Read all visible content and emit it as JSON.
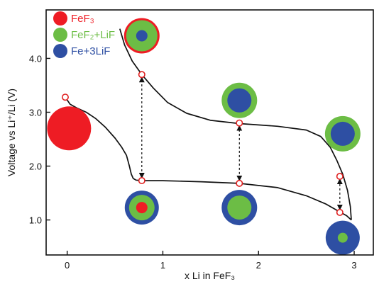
{
  "chart_data": {
    "type": "line",
    "title": "",
    "xlabel": "x Li in FeF₃",
    "ylabel": "Voltage vs Li⁺/Li (V)",
    "xlim": [
      -0.22,
      3.2
    ],
    "ylim": [
      0.35,
      4.9
    ],
    "x_ticks": [
      0,
      1,
      2,
      3
    ],
    "x_tick_labels": [
      "0",
      "1",
      "2",
      "3"
    ],
    "y_ticks": [
      1.0,
      2.0,
      3.0,
      4.0
    ],
    "y_tick_labels": [
      "1.0",
      "2.0",
      "3.0",
      "4.0"
    ],
    "grid": false,
    "colors": {
      "FeF3": "#ee1c24",
      "FeF2_LiF": "#6cbd45",
      "Fe_3LiF": "#2e4fa3",
      "curve": "#111111",
      "marker": "#e02020"
    },
    "legend": {
      "placement": "top-left",
      "items": [
        {
          "key": "FeF3",
          "label": "FeF₃",
          "color": "#ee1c24"
        },
        {
          "key": "FeF2_LiF",
          "label": "FeF₂+LiF",
          "color": "#6cbd45"
        },
        {
          "key": "Fe_3LiF",
          "label": "Fe+3LiF",
          "color": "#2e4fa3"
        }
      ]
    },
    "series": [
      {
        "role": "discharge",
        "points": [
          [
            -0.02,
            3.28
          ],
          [
            0.03,
            3.15
          ],
          [
            0.1,
            3.08
          ],
          [
            0.2,
            3.0
          ],
          [
            0.3,
            2.88
          ],
          [
            0.4,
            2.72
          ],
          [
            0.5,
            2.52
          ],
          [
            0.57,
            2.35
          ],
          [
            0.62,
            2.2
          ],
          [
            0.65,
            2.0
          ],
          [
            0.67,
            1.85
          ],
          [
            0.69,
            1.77
          ],
          [
            0.72,
            1.74
          ],
          [
            0.78,
            1.73
          ],
          [
            1.0,
            1.73
          ],
          [
            1.4,
            1.71
          ],
          [
            1.8,
            1.68
          ],
          [
            2.2,
            1.6
          ],
          [
            2.5,
            1.45
          ],
          [
            2.7,
            1.3
          ],
          [
            2.85,
            1.15
          ],
          [
            2.92,
            1.08
          ],
          [
            2.97,
            1.0
          ]
        ]
      },
      {
        "role": "charge",
        "points": [
          [
            2.97,
            1.0
          ],
          [
            2.96,
            1.25
          ],
          [
            2.93,
            1.55
          ],
          [
            2.88,
            1.85
          ],
          [
            2.82,
            2.1
          ],
          [
            2.75,
            2.35
          ],
          [
            2.65,
            2.55
          ],
          [
            2.5,
            2.67
          ],
          [
            2.2,
            2.74
          ],
          [
            1.8,
            2.79
          ],
          [
            1.5,
            2.85
          ],
          [
            1.25,
            2.98
          ],
          [
            1.05,
            3.18
          ],
          [
            0.9,
            3.45
          ],
          [
            0.78,
            3.7
          ],
          [
            0.68,
            3.95
          ],
          [
            0.6,
            4.25
          ],
          [
            0.55,
            4.55
          ]
        ]
      }
    ],
    "markers": [
      [
        -0.02,
        3.28
      ],
      [
        0.78,
        1.73
      ],
      [
        0.78,
        3.7
      ],
      [
        1.8,
        1.68
      ],
      [
        1.8,
        2.8
      ],
      [
        2.85,
        1.14
      ],
      [
        2.85,
        1.81
      ]
    ],
    "arrows": [
      {
        "x": 0.78,
        "y_from": 1.73,
        "y_to": 3.7
      },
      {
        "x": 1.8,
        "y_from": 1.68,
        "y_to": 2.8
      },
      {
        "x": 2.85,
        "y_from": 1.14,
        "y_to": 1.81
      }
    ],
    "particles": [
      {
        "x": 0.02,
        "y": 2.7,
        "layers": [
          "FeF3"
        ]
      },
      {
        "x": 0.78,
        "y": 4.42,
        "layers": [
          "FeF3",
          "FeF2_LiF",
          "Fe_3LiF"
        ]
      },
      {
        "x": 0.78,
        "y": 1.23,
        "layers": [
          "Fe_3LiF",
          "FeF2_LiF",
          "FeF3"
        ]
      },
      {
        "x": 1.8,
        "y": 3.22,
        "layers": [
          "FeF2_LiF",
          "Fe_3LiF"
        ]
      },
      {
        "x": 1.8,
        "y": 1.23,
        "layers": [
          "Fe_3LiF",
          "FeF2_LiF"
        ]
      },
      {
        "x": 2.88,
        "y": 2.6,
        "layers": [
          "FeF2_LiF",
          "Fe_3LiF"
        ]
      },
      {
        "x": 2.88,
        "y": 0.67,
        "layers": [
          "Fe_3LiF",
          "FeF2_LiF"
        ]
      }
    ]
  }
}
